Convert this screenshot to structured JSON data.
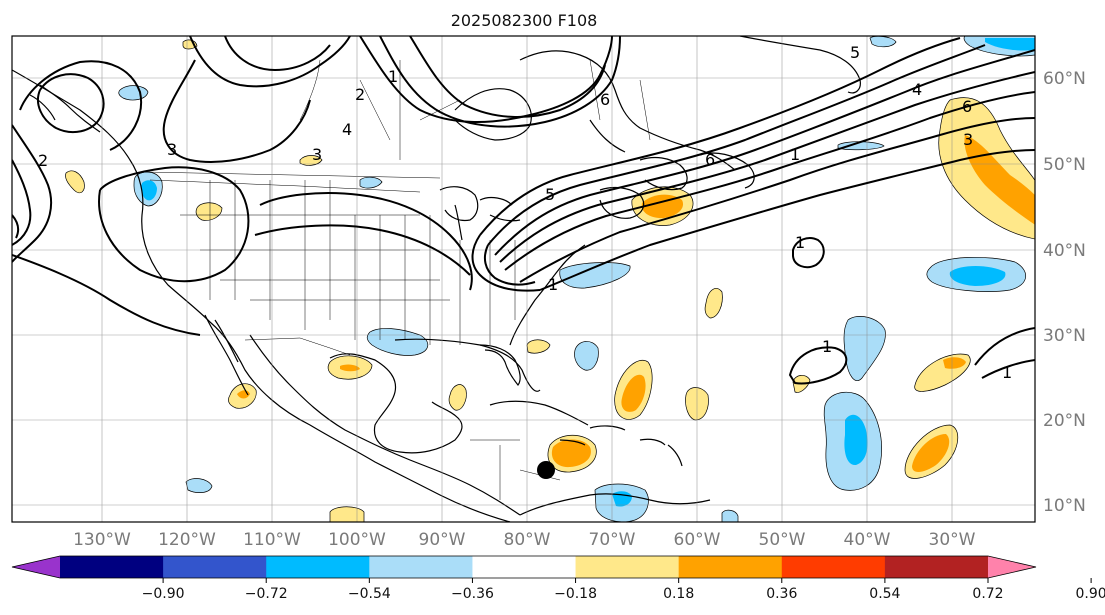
{
  "title": "2025082300 F108",
  "lat_labels": [
    "60°N",
    "50°N",
    "40°N",
    "30°N",
    "20°N",
    "10°N"
  ],
  "lon_labels": [
    "130°W",
    "120°W",
    "110°W",
    "100°W",
    "90°W",
    "80°W",
    "70°W",
    "60°W",
    "50°W",
    "40°W",
    "30°W"
  ],
  "colorbar": {
    "ticks": [
      "−0.90",
      "−0.72",
      "−0.54",
      "−0.36",
      "−0.18",
      "0.18",
      "0.36",
      "0.54",
      "0.72",
      "0.90"
    ],
    "colors": [
      "#9933cc",
      "#000080",
      "#3355cc",
      "#00bbff",
      "#aaddf8",
      "#ffffff",
      "#ffe88a",
      "#ffa200",
      "#ff3c00",
      "#b22222",
      "#ff82ab"
    ]
  },
  "contour_labels": [
    "1",
    "2",
    "3",
    "3",
    "4",
    "5",
    "6",
    "6",
    "1",
    "1",
    "1",
    "3",
    "4",
    "5",
    "6",
    "2",
    "1",
    "1"
  ],
  "marker": {
    "description": "black dot",
    "lat": 14,
    "lon": -77
  }
}
